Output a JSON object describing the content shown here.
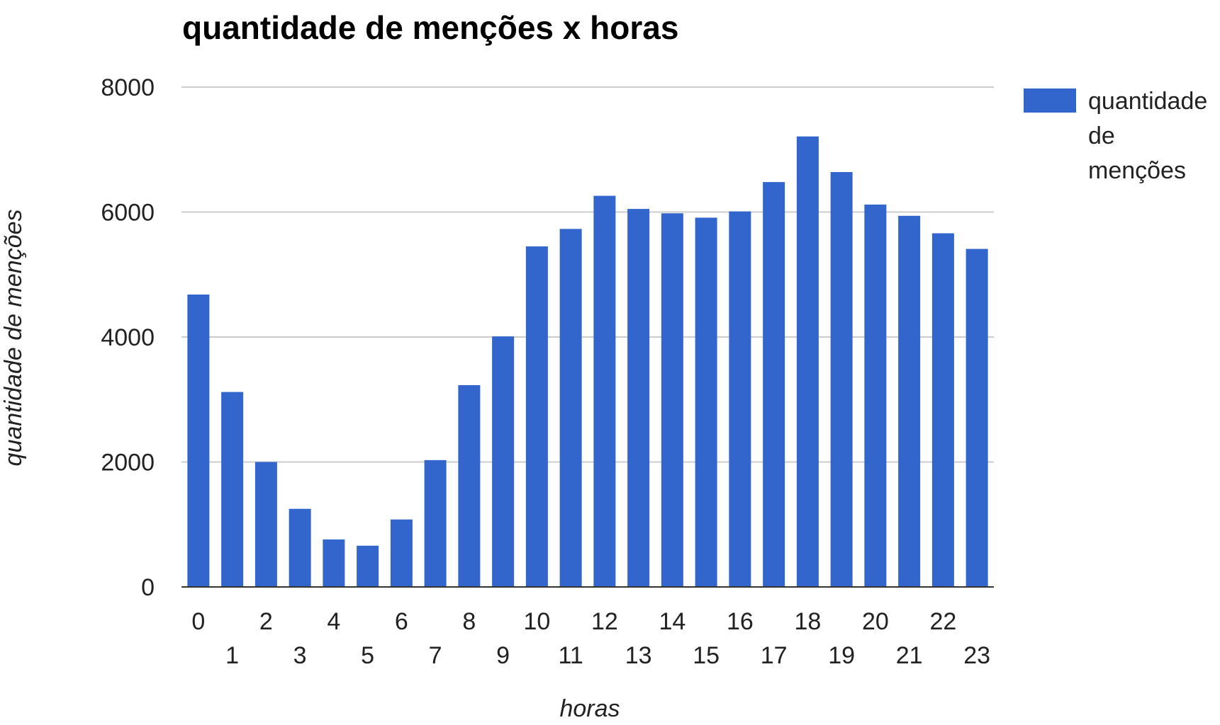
{
  "chart_data": {
    "type": "bar",
    "title": "quantidade de menções x horas",
    "xlabel": "horas",
    "ylabel": "quantidade de menções",
    "categories": [
      "0",
      "1",
      "2",
      "3",
      "4",
      "5",
      "6",
      "7",
      "8",
      "9",
      "10",
      "11",
      "12",
      "13",
      "14",
      "15",
      "16",
      "17",
      "18",
      "19",
      "20",
      "21",
      "22",
      "23"
    ],
    "series": [
      {
        "name": "quantidade de menções",
        "color": "#3366cc",
        "values": [
          4680,
          3120,
          2000,
          1250,
          760,
          660,
          1080,
          2030,
          3230,
          4010,
          5450,
          5730,
          6260,
          6050,
          5980,
          5910,
          6010,
          6480,
          7210,
          6640,
          6120,
          5940,
          5660,
          5410
        ]
      }
    ],
    "ylim": [
      0,
      8000
    ],
    "yticks": [
      0,
      2000,
      4000,
      6000,
      8000
    ],
    "grid": true,
    "legend_position": "right",
    "legend_lines": [
      "quantidade",
      "de",
      "menções"
    ]
  }
}
